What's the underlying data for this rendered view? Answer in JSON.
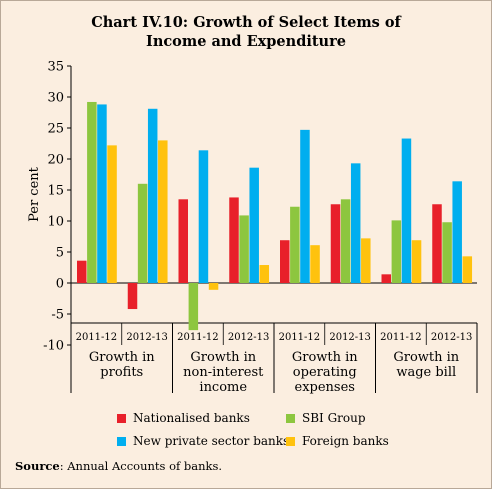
{
  "chart_title_line1": "Chart IV.10: Growth of Select Items of",
  "chart_title_line2": "Income and Expenditure",
  "source_label": "Source",
  "source_text": ": Annual Accounts of banks.",
  "chart_data": {
    "type": "bar",
    "title": "Chart IV.10: Growth of Select Items of Income and Expenditure",
    "ylabel": "Per cent",
    "ylim": [
      -10,
      35
    ],
    "yticks": [
      -10,
      -5,
      0,
      5,
      10,
      15,
      20,
      25,
      30,
      35
    ],
    "grid": false,
    "legend_position": "bottom",
    "groups": [
      {
        "label": "Growth in profits",
        "label_lines": [
          "Growth in",
          "profits"
        ],
        "periods": [
          "2011-12",
          "2012-13"
        ]
      },
      {
        "label": "Growth in non-interest income",
        "label_lines": [
          "Growth in",
          "non-interest",
          "income"
        ],
        "periods": [
          "2011-12",
          "2012-13"
        ]
      },
      {
        "label": "Growth in operating expenses",
        "label_lines": [
          "Growth in",
          "operating",
          "expenses"
        ],
        "periods": [
          "2011-12",
          "2012-13"
        ]
      },
      {
        "label": "Growth in wage bill",
        "label_lines": [
          "Growth in",
          "wage bill"
        ],
        "periods": [
          "2011-12",
          "2012-13"
        ]
      }
    ],
    "series": [
      {
        "name": "Nationalised banks",
        "color": "#e8202a",
        "values": [
          3.6,
          -4.2,
          13.5,
          13.8,
          6.9,
          12.7,
          1.4,
          12.7
        ]
      },
      {
        "name": "SBI Group",
        "color": "#8dc63f",
        "values": [
          29.2,
          16.0,
          -7.6,
          10.9,
          12.3,
          13.5,
          10.1,
          9.8
        ]
      },
      {
        "name": "New private sector banks",
        "color": "#00aeef",
        "values": [
          28.8,
          28.1,
          21.4,
          18.6,
          24.7,
          19.3,
          23.3,
          16.4
        ]
      },
      {
        "name": "Foreign banks",
        "color": "#ffc20e",
        "values": [
          22.2,
          23.0,
          -1.1,
          2.9,
          6.1,
          7.2,
          6.9,
          4.3
        ]
      }
    ]
  }
}
